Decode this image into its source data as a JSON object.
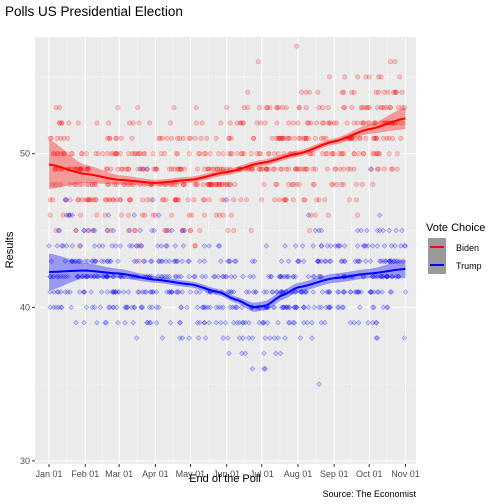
{
  "chart_data": {
    "type": "scatter",
    "title": "Polls US Presidential Election",
    "xlabel": "End of the Poll",
    "ylabel": "Results",
    "caption": "Source: The Economist",
    "x_ticks": [
      {
        "label": "Jan 01",
        "day": 0
      },
      {
        "label": "Feb 01",
        "day": 31
      },
      {
        "label": "Mar 01",
        "day": 60
      },
      {
        "label": "Apr 01",
        "day": 91
      },
      {
        "label": "May 01",
        "day": 121
      },
      {
        "label": "Jun 01",
        "day": 152
      },
      {
        "label": "Jul 01",
        "day": 182
      },
      {
        "label": "Aug 01",
        "day": 213
      },
      {
        "label": "Sep 01",
        "day": 244
      },
      {
        "label": "Oct 01",
        "day": 274
      },
      {
        "label": "Nov 01",
        "day": 305
      }
    ],
    "xlim": [
      -12,
      314
    ],
    "ylim": [
      29.8,
      57.6
    ],
    "y_ticks": [
      30,
      40,
      50
    ],
    "grid": true,
    "background": "#ebebeb",
    "legend": {
      "title": "Vote Choice",
      "position": "right",
      "entries": [
        "Biden",
        "Trump"
      ]
    },
    "series": [
      {
        "name": "Biden",
        "color": "#ff0000",
        "marker": "circle",
        "trend": {
          "x": [
            0,
            30,
            60,
            91,
            121,
            152,
            182,
            213,
            244,
            274,
            305
          ],
          "y": [
            49.3,
            48.7,
            48.3,
            48.1,
            48.3,
            48.8,
            49.4,
            50.0,
            50.8,
            51.6,
            52.3
          ],
          "lower": [
            47.7,
            48.1,
            48.0,
            47.9,
            48.1,
            48.6,
            49.2,
            49.8,
            50.6,
            51.3,
            51.6
          ],
          "upper": [
            50.9,
            49.3,
            48.6,
            48.3,
            48.5,
            49.0,
            49.6,
            50.2,
            51.0,
            51.9,
            53.0
          ]
        }
      },
      {
        "name": "Trump",
        "color": "#0000ff",
        "marker": "diamond",
        "trend": {
          "x": [
            0,
            30,
            60,
            91,
            121,
            145,
            160,
            175,
            185,
            200,
            213,
            244,
            274,
            305
          ],
          "y": [
            42.3,
            42.4,
            42.2,
            41.8,
            41.5,
            41.0,
            40.5,
            40.0,
            40.1,
            40.8,
            41.3,
            41.9,
            42.2,
            42.5
          ],
          "lower": [
            41.1,
            41.9,
            41.9,
            41.6,
            41.3,
            40.8,
            40.3,
            39.7,
            39.8,
            40.5,
            41.0,
            41.6,
            41.9,
            41.9
          ],
          "upper": [
            43.5,
            42.9,
            42.5,
            42.0,
            41.7,
            41.2,
            40.7,
            40.3,
            40.4,
            41.1,
            41.6,
            42.2,
            42.5,
            43.1
          ]
        }
      }
    ]
  }
}
